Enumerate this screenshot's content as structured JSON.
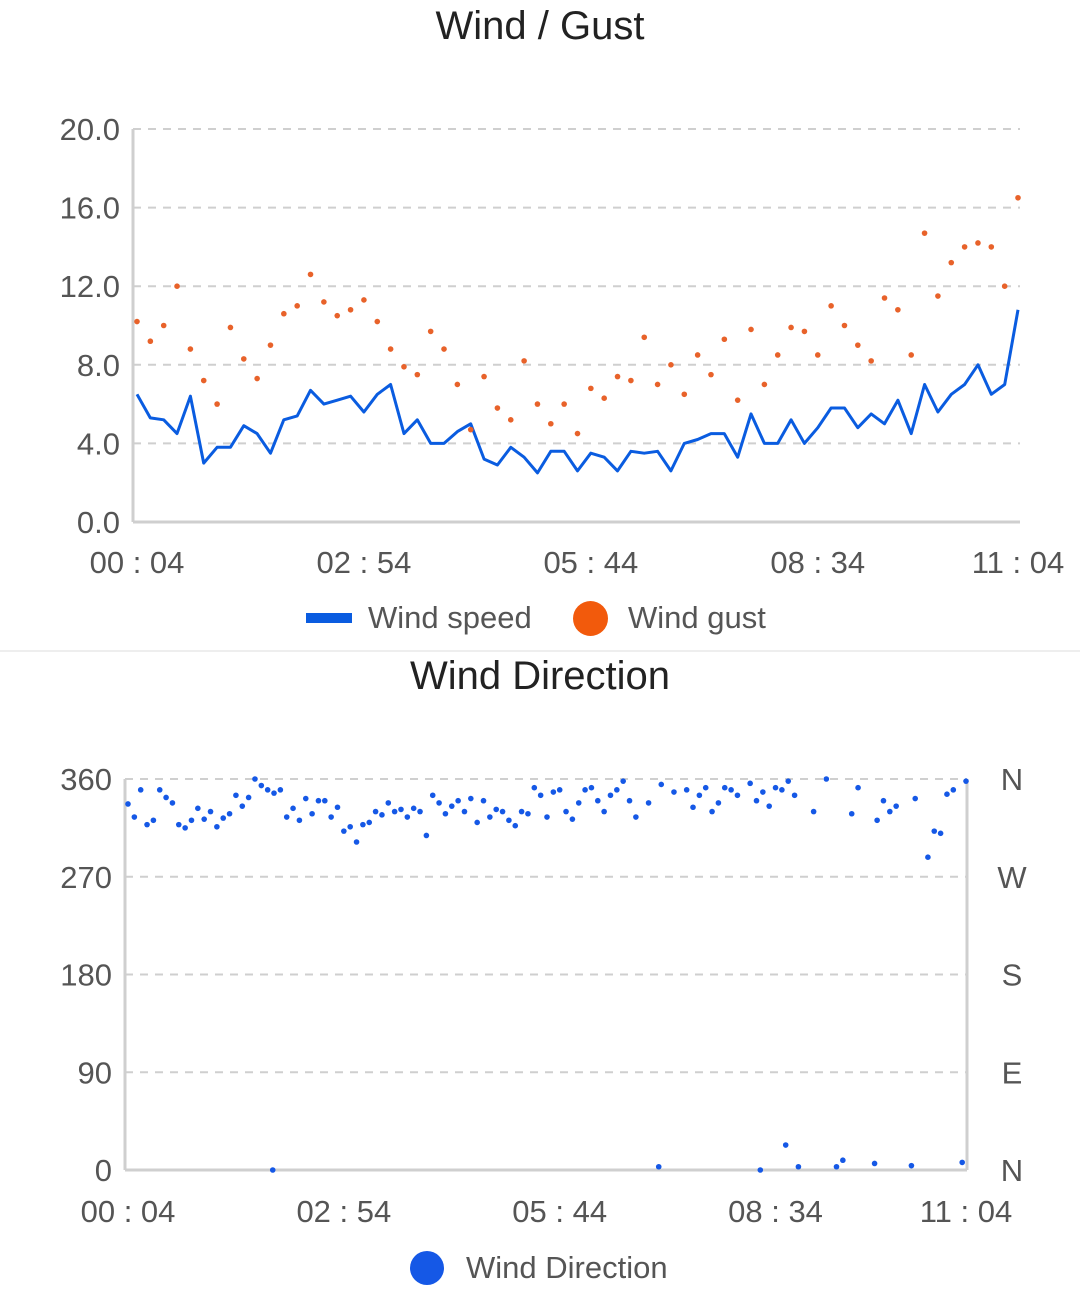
{
  "colors": {
    "speed": "#0a5ce0",
    "gust": "#e8622a",
    "direction": "#1558e6",
    "grid": "#cfcfcf",
    "axis": "#cfcfcf"
  },
  "chart_data": [
    {
      "type": "line",
      "title": "Wind / Gust",
      "ylim": [
        0,
        20
      ],
      "yticks": [
        "0.0",
        "4.0",
        "8.0",
        "12.0",
        "16.0",
        "20.0"
      ],
      "ytick_values": [
        0,
        4,
        8,
        12,
        16,
        20
      ],
      "xlim_minutes": [
        0,
        660
      ],
      "xticks": [
        "00 : 04",
        "02 : 54",
        "05 : 44",
        "08 : 34",
        "11 : 04"
      ],
      "xtick_minutes": [
        0,
        170,
        340,
        510,
        660
      ],
      "legend": [
        "Wind speed",
        "Wind gust"
      ],
      "legend_position": "bottom",
      "grid": true,
      "x_step_minutes": 10,
      "series": [
        {
          "name": "Wind speed",
          "kind": "line",
          "values": [
            6.5,
            5.3,
            5.2,
            4.5,
            6.4,
            3.0,
            3.8,
            3.8,
            4.9,
            4.5,
            3.5,
            5.2,
            5.4,
            6.7,
            6.0,
            6.2,
            6.4,
            5.6,
            6.5,
            7.0,
            4.5,
            5.2,
            4.0,
            4.0,
            4.6,
            5.0,
            3.2,
            2.9,
            3.8,
            3.3,
            2.5,
            3.6,
            3.6,
            2.6,
            3.5,
            3.3,
            2.6,
            3.6,
            3.5,
            3.6,
            2.6,
            4.0,
            4.2,
            4.5,
            4.5,
            3.3,
            5.5,
            4.0,
            4.0,
            5.2,
            4.0,
            4.8,
            5.8,
            5.8,
            4.8,
            5.5,
            5.0,
            6.2,
            4.5,
            7.0,
            5.6,
            6.5,
            7.0,
            8.0,
            6.5,
            7.0,
            10.8
          ]
        },
        {
          "name": "Wind gust",
          "kind": "scatter",
          "values": [
            10.2,
            9.2,
            10.0,
            12.0,
            8.8,
            7.2,
            6.0,
            9.9,
            8.3,
            7.3,
            9.0,
            10.6,
            11.0,
            12.6,
            11.2,
            10.5,
            10.8,
            11.3,
            10.2,
            8.8,
            7.9,
            7.5,
            9.7,
            8.8,
            7.0,
            4.7,
            7.4,
            5.8,
            5.2,
            8.2,
            6.0,
            5.0,
            6.0,
            4.5,
            6.8,
            6.3,
            7.4,
            7.2,
            9.4,
            7.0,
            8.0,
            6.5,
            8.5,
            7.5,
            9.3,
            6.2,
            9.8,
            7.0,
            8.5,
            9.9,
            9.7,
            8.5,
            11.0,
            10.0,
            9.0,
            8.2,
            11.4,
            10.8,
            8.5,
            14.7,
            11.5,
            13.2,
            14.0,
            14.2,
            14.0,
            12.0,
            16.5
          ]
        }
      ]
    },
    {
      "type": "scatter",
      "title": "Wind Direction",
      "ylim": [
        0,
        360
      ],
      "yticks": [
        "0",
        "90",
        "180",
        "270",
        "360"
      ],
      "ytick_values": [
        0,
        90,
        180,
        270,
        360
      ],
      "right_ticks": [
        "N",
        "E",
        "S",
        "W",
        "N"
      ],
      "xlim_minutes": [
        0,
        660
      ],
      "xticks": [
        "00 : 04",
        "02 : 54",
        "05 : 44",
        "08 : 34",
        "11 : 04"
      ],
      "xtick_minutes": [
        0,
        170,
        340,
        510,
        660
      ],
      "legend": [
        "Wind Direction"
      ],
      "legend_position": "bottom",
      "grid": true,
      "points": [
        [
          0,
          337
        ],
        [
          5,
          325
        ],
        [
          10,
          350
        ],
        [
          15,
          318
        ],
        [
          20,
          322
        ],
        [
          25,
          350
        ],
        [
          30,
          343
        ],
        [
          35,
          338
        ],
        [
          40,
          318
        ],
        [
          45,
          315
        ],
        [
          50,
          322
        ],
        [
          55,
          333
        ],
        [
          60,
          323
        ],
        [
          65,
          330
        ],
        [
          70,
          316
        ],
        [
          75,
          324
        ],
        [
          80,
          328
        ],
        [
          85,
          345
        ],
        [
          90,
          335
        ],
        [
          95,
          343
        ],
        [
          100,
          360
        ],
        [
          105,
          354
        ],
        [
          110,
          350
        ],
        [
          114,
          0
        ],
        [
          115,
          347
        ],
        [
          120,
          350
        ],
        [
          125,
          325
        ],
        [
          130,
          333
        ],
        [
          135,
          322
        ],
        [
          140,
          342
        ],
        [
          145,
          328
        ],
        [
          150,
          340
        ],
        [
          155,
          340
        ],
        [
          160,
          325
        ],
        [
          165,
          334
        ],
        [
          170,
          312
        ],
        [
          175,
          316
        ],
        [
          180,
          302
        ],
        [
          185,
          318
        ],
        [
          190,
          320
        ],
        [
          195,
          330
        ],
        [
          200,
          327
        ],
        [
          205,
          338
        ],
        [
          210,
          330
        ],
        [
          215,
          332
        ],
        [
          220,
          325
        ],
        [
          225,
          333
        ],
        [
          230,
          330
        ],
        [
          235,
          308
        ],
        [
          240,
          345
        ],
        [
          245,
          338
        ],
        [
          250,
          328
        ],
        [
          255,
          335
        ],
        [
          260,
          340
        ],
        [
          265,
          330
        ],
        [
          270,
          342
        ],
        [
          275,
          320
        ],
        [
          280,
          340
        ],
        [
          285,
          325
        ],
        [
          290,
          332
        ],
        [
          295,
          330
        ],
        [
          300,
          322
        ],
        [
          305,
          317
        ],
        [
          310,
          330
        ],
        [
          315,
          328
        ],
        [
          320,
          352
        ],
        [
          325,
          345
        ],
        [
          330,
          325
        ],
        [
          335,
          348
        ],
        [
          340,
          350
        ],
        [
          345,
          330
        ],
        [
          350,
          323
        ],
        [
          355,
          338
        ],
        [
          360,
          350
        ],
        [
          365,
          352
        ],
        [
          370,
          340
        ],
        [
          375,
          330
        ],
        [
          380,
          345
        ],
        [
          385,
          350
        ],
        [
          390,
          358
        ],
        [
          395,
          340
        ],
        [
          400,
          325
        ],
        [
          410,
          338
        ],
        [
          418,
          3
        ],
        [
          420,
          355
        ],
        [
          430,
          348
        ],
        [
          440,
          350
        ],
        [
          445,
          334
        ],
        [
          450,
          345
        ],
        [
          455,
          352
        ],
        [
          460,
          330
        ],
        [
          465,
          338
        ],
        [
          470,
          352
        ],
        [
          475,
          350
        ],
        [
          480,
          345
        ],
        [
          490,
          356
        ],
        [
          495,
          340
        ],
        [
          498,
          0
        ],
        [
          500,
          348
        ],
        [
          505,
          335
        ],
        [
          510,
          352
        ],
        [
          515,
          350
        ],
        [
          518,
          23
        ],
        [
          520,
          358
        ],
        [
          525,
          345
        ],
        [
          528,
          3
        ],
        [
          540,
          330
        ],
        [
          550,
          360
        ],
        [
          558,
          3
        ],
        [
          563,
          9
        ],
        [
          570,
          328
        ],
        [
          575,
          352
        ],
        [
          588,
          6
        ],
        [
          590,
          322
        ],
        [
          595,
          340
        ],
        [
          600,
          330
        ],
        [
          605,
          335
        ],
        [
          617,
          4
        ],
        [
          620,
          342
        ],
        [
          630,
          288
        ],
        [
          635,
          312
        ],
        [
          640,
          310
        ],
        [
          645,
          346
        ],
        [
          650,
          350
        ],
        [
          657,
          7
        ],
        [
          660,
          358
        ]
      ]
    }
  ]
}
